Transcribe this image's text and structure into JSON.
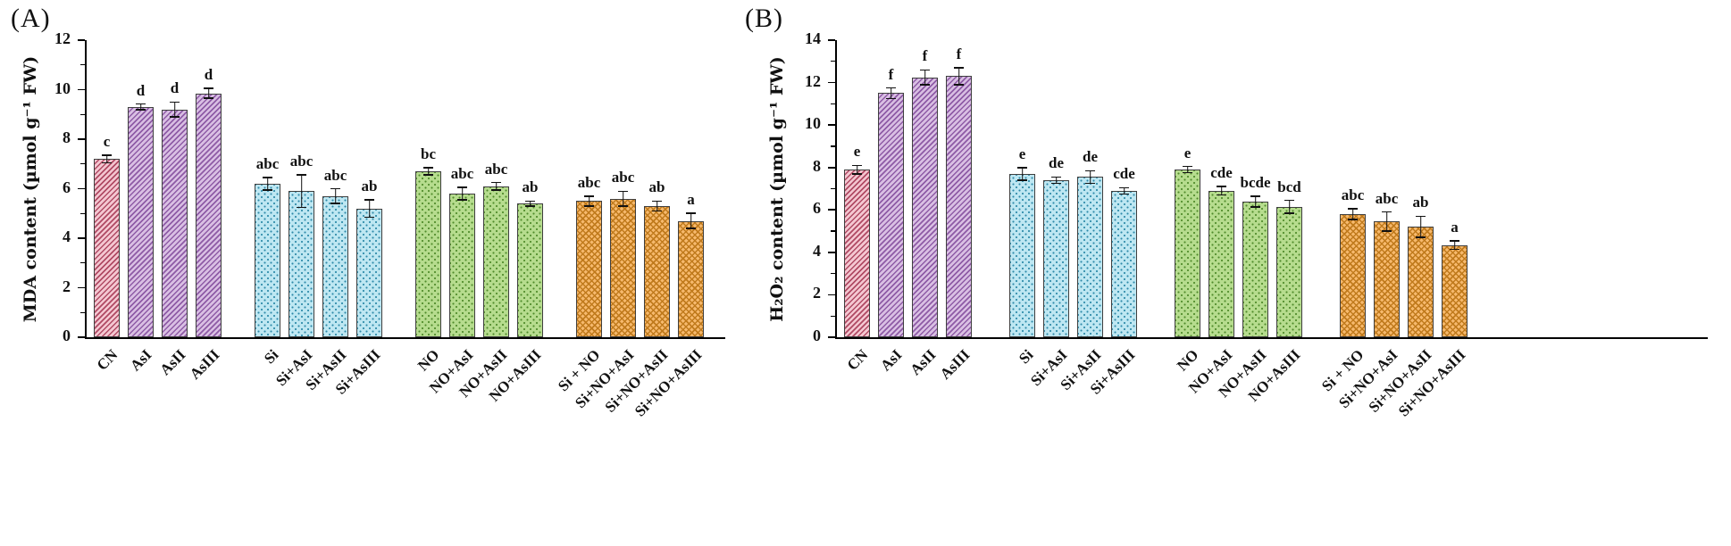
{
  "styles": {
    "pink": {
      "base": "#f4c7d1",
      "accent": "#b04a64",
      "pattern": "diag"
    },
    "purple": {
      "base": "#d9bfe3",
      "accent": "#8e5ba6",
      "pattern": "diag"
    },
    "blue": {
      "base": "#bee7f2",
      "accent": "#2d89a8",
      "pattern": "dots"
    },
    "green": {
      "base": "#b6dc8e",
      "accent": "#4f8a2a",
      "pattern": "dots"
    },
    "orange": {
      "base": "#f6b96d",
      "accent": "#c07a1c",
      "pattern": "cross"
    }
  },
  "chart_data": [
    {
      "type": "bar",
      "panel": "(A)",
      "title": "",
      "xlabel": "",
      "ylabel": "MDA content (µmol g⁻¹ FW)",
      "ylim": [
        0,
        12
      ],
      "ytick_step": 2,
      "yticks": [
        0,
        2,
        4,
        6,
        8,
        10,
        12
      ],
      "grid": false,
      "legend": "none",
      "categories": [
        "CN",
        "AsI",
        "AsII",
        "AsIII",
        "Si",
        "Si+AsI",
        "Si+AsII",
        "Si+AsIII",
        "NO",
        "NO+AsI",
        "NO+AsII",
        "NO+AsIII",
        "Si + NO",
        "Si+NO+AsI",
        "Si+NO+AsII",
        "Si+NO+AsIII"
      ],
      "values": [
        7.2,
        9.3,
        9.2,
        9.85,
        6.2,
        5.9,
        5.7,
        5.2,
        6.7,
        5.8,
        6.1,
        5.4,
        5.5,
        5.6,
        5.3,
        4.7
      ],
      "errors": [
        0.15,
        0.12,
        0.3,
        0.2,
        0.25,
        0.65,
        0.3,
        0.35,
        0.15,
        0.25,
        0.15,
        0.1,
        0.2,
        0.3,
        0.2,
        0.3
      ],
      "sig_letters": [
        "c",
        "d",
        "d",
        "d",
        "abc",
        "abc",
        "abc",
        "ab",
        "bc",
        "abc",
        "abc",
        "ab",
        "abc",
        "abc",
        "ab",
        "a"
      ],
      "bar_styles": [
        "pink",
        "purple",
        "purple",
        "purple",
        "blue",
        "blue",
        "blue",
        "blue",
        "green",
        "green",
        "green",
        "green",
        "orange",
        "orange",
        "orange",
        "orange"
      ],
      "groups": [
        [
          0,
          3
        ],
        [
          4,
          7
        ],
        [
          8,
          11
        ],
        [
          12,
          15
        ]
      ]
    },
    {
      "type": "bar",
      "panel": "(B)",
      "title": "",
      "xlabel": "",
      "ylabel": "H₂O₂ content (µmol g⁻¹ FW)",
      "ylim": [
        0,
        14
      ],
      "ytick_step": 2,
      "yticks": [
        0,
        2,
        4,
        6,
        8,
        10,
        12,
        14
      ],
      "grid": false,
      "legend": "none",
      "categories": [
        "CN",
        "AsI",
        "AsII",
        "AsIII",
        "Si",
        "Si+AsI",
        "Si+AsII",
        "Si+AsIII",
        "NO",
        "NO+AsI",
        "NO+AsII",
        "NO+AsIII",
        "Si + NO",
        "Si+NO+AsI",
        "Si+NO+AsII",
        "Si+NO+AsIII"
      ],
      "values": [
        7.9,
        11.5,
        12.25,
        12.3,
        7.7,
        7.4,
        7.55,
        6.9,
        7.9,
        6.9,
        6.4,
        6.15,
        5.8,
        5.45,
        5.2,
        4.35
      ],
      "errors": [
        0.2,
        0.25,
        0.35,
        0.4,
        0.3,
        0.15,
        0.3,
        0.15,
        0.15,
        0.2,
        0.25,
        0.3,
        0.25,
        0.45,
        0.5,
        0.2
      ],
      "sig_letters": [
        "e",
        "f",
        "f",
        "f",
        "e",
        "de",
        "de",
        "cde",
        "e",
        "cde",
        "bcde",
        "bcd",
        "abc",
        "abc",
        "ab",
        "a"
      ],
      "bar_styles": [
        "pink",
        "purple",
        "purple",
        "purple",
        "blue",
        "blue",
        "blue",
        "blue",
        "green",
        "green",
        "green",
        "green",
        "orange",
        "orange",
        "orange",
        "orange"
      ],
      "groups": [
        [
          0,
          3
        ],
        [
          4,
          7
        ],
        [
          8,
          11
        ],
        [
          12,
          15
        ]
      ]
    }
  ]
}
